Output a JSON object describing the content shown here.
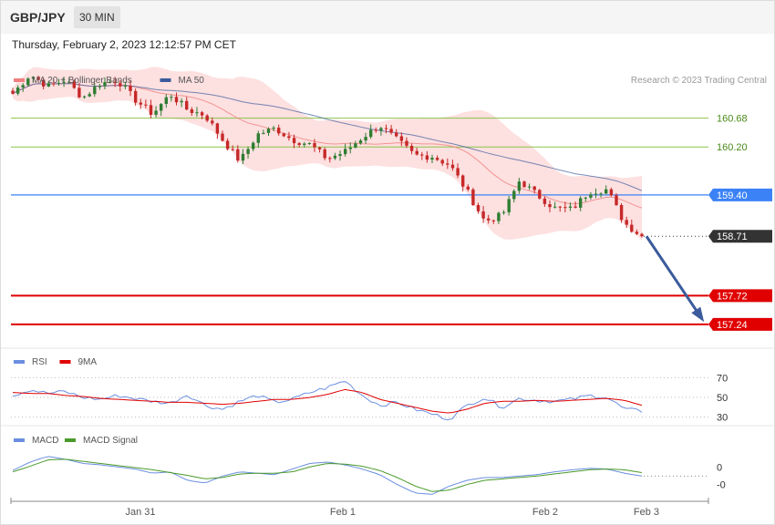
{
  "header": {
    "pair": "GBP/JPY",
    "timeframe": "30 MIN",
    "datetime": "Thursday, February 2, 2023 12:12:57 PM CET"
  },
  "colors": {
    "bull": "#2e7d32",
    "bear": "#c62828",
    "ma50": "#3b5b9c",
    "bollinger": "#fde0e0",
    "ma20": "#f08080",
    "pivot": "#3b82f6",
    "support": "#e00000",
    "resistance": "#8bc34a",
    "arrow": "#3b5b9c",
    "rsi": "#6b8ee0",
    "rsi_ma": "#e00000",
    "macd": "#6b8ee0",
    "macd_signal": "#4a9a2a"
  },
  "legends": {
    "price": [
      {
        "label": "MA 20 + Bollinger Bands",
        "color": "#f08080"
      },
      {
        "label": "MA 50",
        "color": "#3b5b9c"
      }
    ],
    "rsi": [
      {
        "label": "RSI",
        "color": "#6b8ee0"
      },
      {
        "label": "9MA",
        "color": "#e00000"
      }
    ],
    "macd": [
      {
        "label": "MACD",
        "color": "#6b8ee0"
      },
      {
        "label": "MACD Signal",
        "color": "#4a9a2a"
      }
    ]
  },
  "copyright": "Research © 2023 Trading Central",
  "chart_data": {
    "type": "candlestick",
    "x_labels": [
      "Jan 31",
      "Feb 1",
      "Feb 2",
      "Feb 3"
    ],
    "ylim": [
      156.95,
      161.45
    ],
    "levels": [
      {
        "value": 160.68,
        "label": "160.68",
        "kind": "resistance"
      },
      {
        "value": 160.2,
        "label": "160.20",
        "kind": "resistance"
      },
      {
        "value": 159.4,
        "label": "159.40",
        "kind": "pivot"
      },
      {
        "value": 158.71,
        "label": "158.71",
        "kind": "last"
      },
      {
        "value": 157.72,
        "label": "157.72",
        "kind": "support"
      },
      {
        "value": 157.24,
        "label": "157.24",
        "kind": "support"
      }
    ],
    "price_anchors": [
      161.09,
      161.41,
      161.21,
      161.32,
      161.02,
      161.26,
      161.31,
      160.99,
      160.75,
      161.08,
      160.82,
      160.73,
      160.32,
      159.96,
      160.41,
      160.51,
      160.32,
      160.24,
      160.0,
      160.12,
      160.36,
      160.56,
      160.31,
      160.06,
      160.04,
      159.9,
      159.46,
      158.96,
      159.06,
      159.64,
      159.4,
      159.18,
      159.16,
      159.46,
      159.49,
      158.93,
      158.71
    ],
    "rsi": {
      "ylim": [
        25,
        75
      ],
      "levels": [
        70,
        50,
        30
      ],
      "labels": [
        "70",
        "50",
        "30"
      ],
      "anchors": [
        52,
        58,
        54,
        56,
        50,
        48,
        52,
        49,
        46,
        44,
        53,
        42,
        38,
        46,
        52,
        45,
        48,
        55,
        60,
        67,
        52,
        42,
        45,
        38,
        33,
        28,
        42,
        50,
        40,
        49,
        47,
        46,
        48,
        52,
        50,
        38,
        36
      ],
      "ma_anchors": [
        55,
        54,
        54,
        52,
        51,
        49,
        48,
        47,
        46,
        45,
        45,
        44,
        43,
        44,
        46,
        48,
        48,
        50,
        53,
        58,
        55,
        48,
        44,
        40,
        36,
        34,
        38,
        44,
        46,
        46,
        47,
        46,
        47,
        48,
        49,
        47,
        42
      ]
    },
    "macd": {
      "ylim": [
        -0.4,
        0.3
      ],
      "labels": [
        "0",
        "-0"
      ],
      "label_values": [
        0.05,
        -0.2
      ],
      "macd_anchors": [
        0.0,
        0.12,
        0.2,
        0.16,
        0.1,
        0.08,
        0.05,
        0.02,
        -0.04,
        -0.02,
        -0.14,
        -0.18,
        -0.08,
        -0.02,
        -0.04,
        -0.06,
        0.02,
        0.1,
        0.12,
        0.08,
        0.02,
        -0.06,
        -0.2,
        -0.32,
        -0.34,
        -0.22,
        -0.14,
        -0.1,
        -0.1,
        -0.08,
        -0.06,
        -0.02,
        0.01,
        0.03,
        0.02,
        -0.04,
        -0.08
      ],
      "signal_anchors": [
        -0.02,
        0.06,
        0.15,
        0.16,
        0.13,
        0.1,
        0.07,
        0.04,
        0.01,
        -0.03,
        -0.07,
        -0.12,
        -0.1,
        -0.05,
        -0.04,
        -0.04,
        -0.02,
        0.05,
        0.1,
        0.09,
        0.06,
        0.0,
        -0.1,
        -0.22,
        -0.3,
        -0.28,
        -0.2,
        -0.14,
        -0.12,
        -0.1,
        -0.08,
        -0.05,
        -0.02,
        0.01,
        0.02,
        0.01,
        -0.03
      ]
    }
  }
}
